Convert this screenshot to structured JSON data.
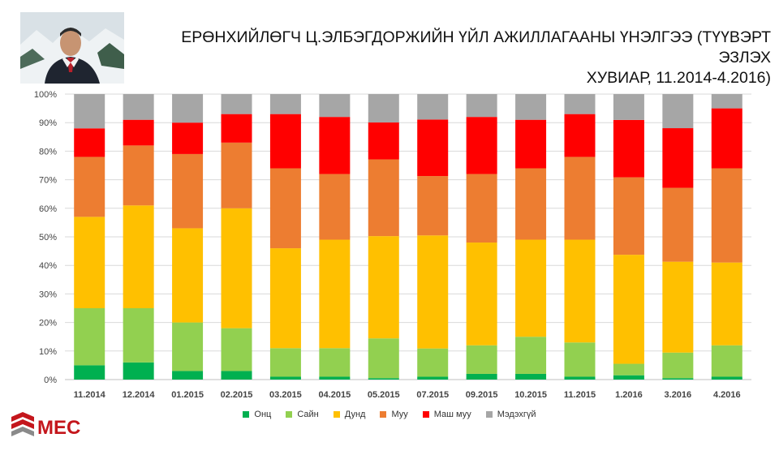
{
  "header": {
    "title_line1": "ЕРӨНХИЙЛӨГЧ Ц.ЭЛБЭГДОРЖИЙН ҮЙЛ АЖИЛЛАГААНЫ ҮНЭЛГЭЭ (ТҮҮВЭРТ ЭЗЛЭХ",
    "title_line2": "ХУВИАР, 11.2014-4.2016)"
  },
  "logo": {
    "text": "MEC",
    "color": "#c4161c"
  },
  "chart_data": {
    "type": "bar",
    "stacked": true,
    "percent_stacked": true,
    "categories": [
      "11.2014",
      "12.2014",
      "01.2015",
      "02.2015",
      "03.2015",
      "04.2015",
      "05.2015",
      "07.2015",
      "09.2015",
      "10.2015",
      "11.2015",
      "1.2016",
      "3.2016",
      "4.2016"
    ],
    "series": [
      {
        "name": "Онц",
        "color": "#00b050",
        "values": [
          5,
          6,
          3,
          3,
          1,
          1,
          0.5,
          1,
          2,
          2,
          1,
          1.5,
          0.5,
          1
        ]
      },
      {
        "name": "Сайн",
        "color": "#92d050",
        "values": [
          20,
          19,
          17,
          15,
          10,
          10,
          14,
          10,
          10,
          13,
          12,
          4,
          9,
          11
        ]
      },
      {
        "name": "Дунд",
        "color": "#ffc000",
        "values": [
          32,
          36,
          33,
          42,
          35,
          38,
          36,
          40,
          36,
          34,
          36,
          38,
          32,
          29
        ]
      },
      {
        "name": "Муу",
        "color": "#ed7d31",
        "values": [
          21,
          21,
          26,
          23,
          28,
          23,
          27,
          21,
          24,
          25,
          29,
          27,
          26,
          33
        ]
      },
      {
        "name": "Маш муу",
        "color": "#ff0000",
        "values": [
          10,
          9,
          11,
          10,
          19,
          20,
          13,
          20,
          20,
          17,
          15,
          20,
          21,
          21
        ]
      },
      {
        "name": "Мэдэхгүй",
        "color": "#a6a6a6",
        "values": [
          12,
          9,
          10,
          7,
          7,
          8,
          10,
          9,
          8,
          9,
          7,
          9,
          12,
          5
        ]
      }
    ],
    "y_ticks": [
      "0%",
      "10%",
      "20%",
      "30%",
      "40%",
      "50%",
      "60%",
      "70%",
      "80%",
      "90%",
      "100%"
    ],
    "ylim": [
      0,
      100
    ],
    "grid": true,
    "legend_position": "bottom"
  }
}
